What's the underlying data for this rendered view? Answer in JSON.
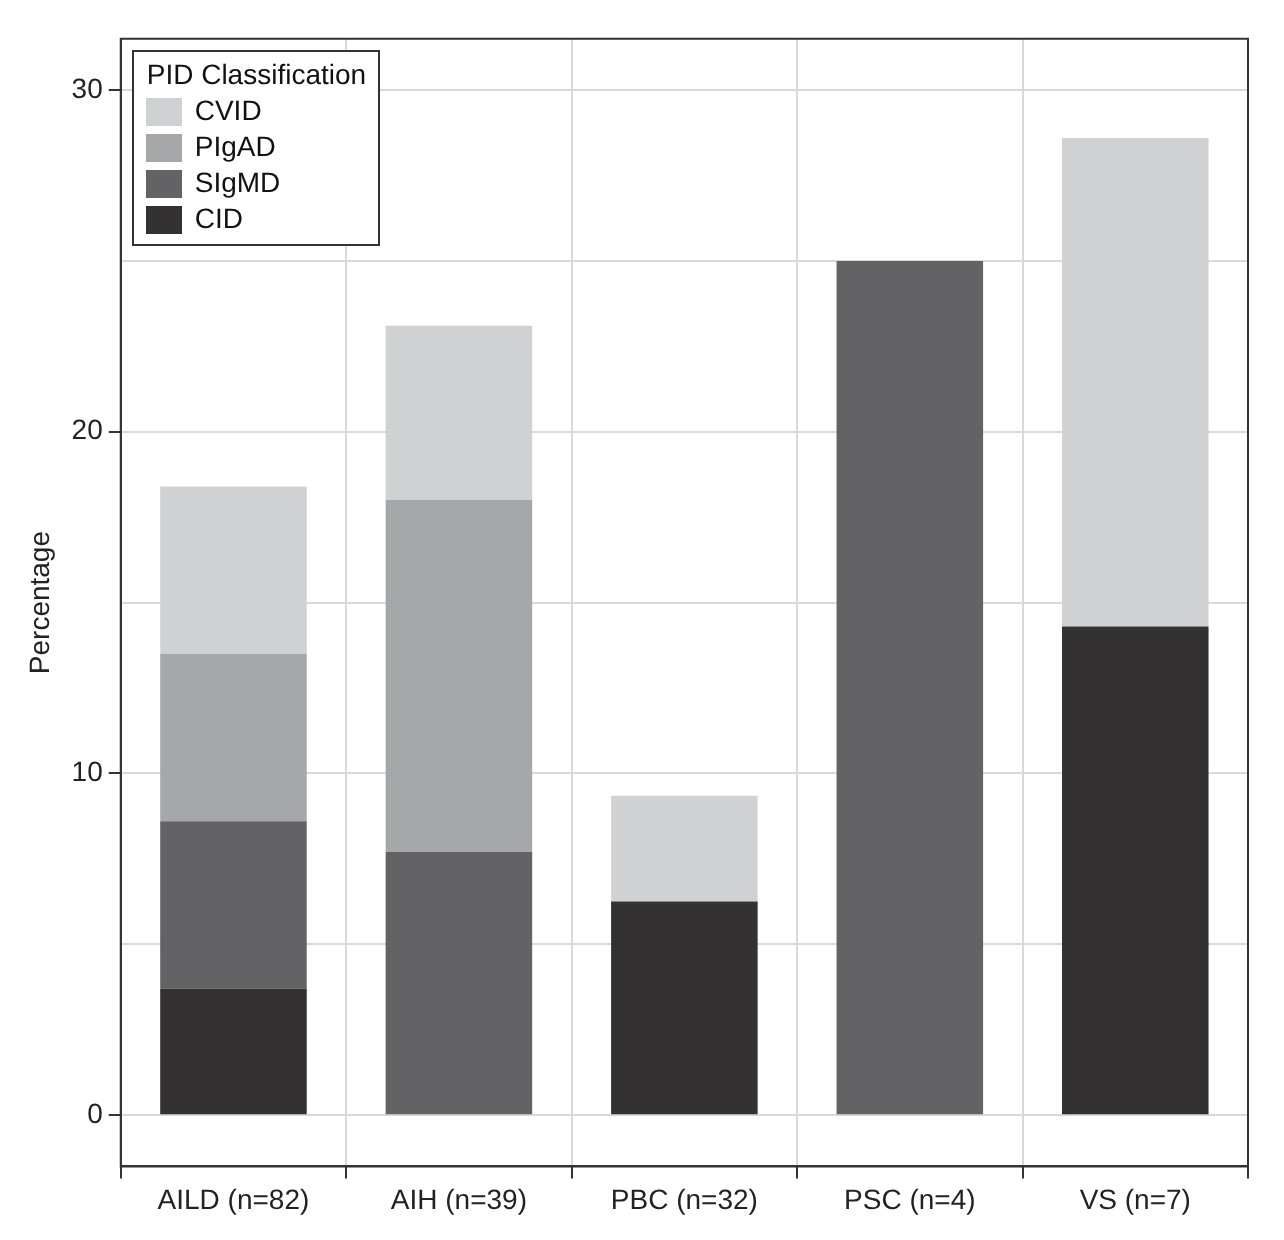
{
  "chart_data": {
    "type": "bar",
    "stacked": true,
    "ylabel": "Percentage",
    "legend_title": "PID Classification",
    "legend": "top left",
    "grid": true,
    "categories": [
      "AILD (n=82)",
      "AIH (n=39)",
      "PBC (n=32)",
      "PSC (n=4)",
      "VS (n=7)"
    ],
    "ylim": [
      -1.5,
      31.5
    ],
    "yticks": [
      0,
      {
        "value": 5,
        "label": null
      },
      10,
      {
        "value": 15,
        "label": null
      },
      20,
      {
        "value": 25,
        "label": null
      },
      30
    ],
    "series": [
      {
        "name": "CID",
        "color": "#333132",
        "values": [
          3.7,
          null,
          6.25,
          null,
          14.3
        ]
      },
      {
        "name": "SIgMD",
        "color": "#636365",
        "values": [
          4.9,
          7.7,
          null,
          25,
          null
        ]
      },
      {
        "name": "PIgAD",
        "color": "#a6a7a9",
        "values": [
          4.9,
          10.3,
          null,
          null,
          null
        ]
      },
      {
        "name": "CVID",
        "color": "#d0d1d3",
        "values": [
          4.9,
          5.1,
          3.1,
          null,
          14.3
        ]
      }
    ]
  }
}
